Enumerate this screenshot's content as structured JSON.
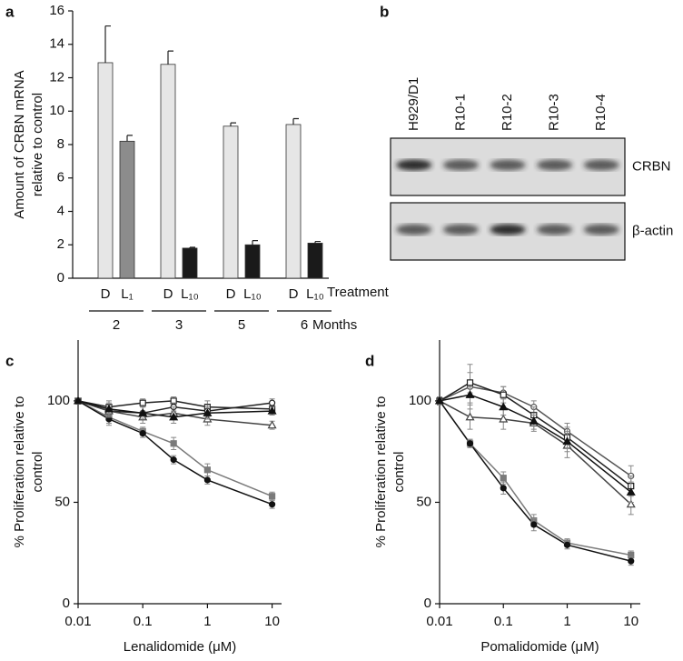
{
  "chart_data": [
    {
      "type": "bar",
      "panel_label": "a",
      "ylabel": [
        "Amount of CRBN mRNA",
        "relative to control"
      ],
      "categories": [
        "D",
        "L₁",
        "D",
        "L₁₀",
        "D",
        "L₁₀",
        "D",
        "L₁₀"
      ],
      "values": [
        12.9,
        8.2,
        12.8,
        1.8,
        9.1,
        2.0,
        9.2,
        2.1
      ],
      "errors": [
        2.2,
        0.35,
        0.8,
        0.05,
        0.2,
        0.25,
        0.35,
        0.1
      ],
      "colors": [
        "#e6e6e6",
        "#8c8c8c",
        "#e6e6e6",
        "#1a1a1a",
        "#e6e6e6",
        "#1a1a1a",
        "#e6e6e6",
        "#1a1a1a"
      ],
      "category_axis_label": "Treatment",
      "groups": [
        "2",
        "3",
        "5",
        "6"
      ],
      "group_axis_label": "Months",
      "ylim": [
        0,
        16
      ],
      "yticks": [
        0,
        2,
        4,
        6,
        8,
        10,
        12,
        14,
        16
      ]
    },
    {
      "type": "blot",
      "panel_label": "b",
      "lanes": [
        "H929/D1",
        "R10-1",
        "R10-2",
        "R10-3",
        "R10-4"
      ],
      "rows": [
        "CRBN",
        "β-actin"
      ]
    },
    {
      "type": "line",
      "panel_label": "c",
      "xlabel": "Lenalidomide (μM)",
      "ylabel": [
        "% Proliferation relative to",
        "control"
      ],
      "x": [
        0.01,
        0.03,
        0.1,
        0.3,
        1,
        10
      ],
      "xscale": "log",
      "xlim": [
        0.01,
        14
      ],
      "xticks": [
        0.01,
        0.1,
        1,
        10
      ],
      "ylim": [
        0,
        130
      ],
      "yticks": [
        0,
        50,
        100
      ],
      "series": [
        {
          "color": "#7a7a7a",
          "marker": "square",
          "fill": "filled",
          "values": [
            100,
            92,
            85,
            79,
            66,
            53
          ],
          "errors": [
            1.5,
            3,
            2,
            3,
            3,
            2
          ]
        },
        {
          "color": "#111111",
          "marker": "circle",
          "fill": "filled",
          "values": [
            100,
            91,
            84,
            71,
            61,
            49
          ],
          "errors": [
            1.5,
            3,
            2,
            2,
            2,
            2
          ]
        },
        {
          "color": "#222222",
          "marker": "square",
          "fill": "open",
          "values": [
            100,
            97,
            99,
            100,
            97,
            96
          ],
          "errors": [
            1.5,
            3,
            2,
            2,
            3,
            2
          ]
        },
        {
          "color": "#222222",
          "marker": "circle",
          "fill": "open",
          "values": [
            100,
            95,
            94,
            97,
            95,
            99
          ],
          "errors": [
            1.5,
            3,
            3,
            2,
            3,
            2
          ]
        },
        {
          "color": "#444444",
          "marker": "triangle",
          "fill": "open",
          "values": [
            100,
            95,
            92,
            94,
            91,
            88
          ],
          "errors": [
            1.5,
            3,
            3,
            3,
            3,
            2
          ]
        },
        {
          "color": "#111111",
          "marker": "triangle",
          "fill": "filled",
          "values": [
            100,
            96,
            94,
            92,
            94,
            95
          ],
          "errors": [
            1.5,
            3,
            3,
            3,
            3,
            2
          ]
        }
      ]
    },
    {
      "type": "line",
      "panel_label": "d",
      "xlabel": "Pomalidomide (μM)",
      "ylabel": [
        "% Proliferation relative to",
        "control"
      ],
      "x": [
        0.01,
        0.03,
        0.1,
        0.3,
        1,
        10
      ],
      "xscale": "log",
      "xlim": [
        0.01,
        14
      ],
      "xticks": [
        0.01,
        0.1,
        1,
        10
      ],
      "ylim": [
        0,
        130
      ],
      "yticks": [
        0,
        50,
        100
      ],
      "series": [
        {
          "color": "#7a7a7a",
          "marker": "square",
          "fill": "filled",
          "values": [
            100,
            79,
            62,
            41,
            30,
            24
          ],
          "errors": [
            1.5,
            2,
            3,
            3,
            2,
            2
          ]
        },
        {
          "color": "#111111",
          "marker": "circle",
          "fill": "filled",
          "values": [
            100,
            79,
            57,
            39,
            29,
            21
          ],
          "errors": [
            1.5,
            2,
            3,
            3,
            2,
            2
          ]
        },
        {
          "color": "#555555",
          "marker": "circle",
          "fill": "open",
          "values": [
            100,
            107,
            104,
            97,
            85,
            63
          ],
          "errors": [
            2,
            11,
            3,
            3,
            4,
            5
          ]
        },
        {
          "color": "#222222",
          "marker": "square",
          "fill": "open",
          "values": [
            100,
            109,
            103,
            93,
            82,
            58
          ],
          "errors": [
            2,
            5,
            4,
            4,
            5,
            5
          ]
        },
        {
          "color": "#444444",
          "marker": "triangle",
          "fill": "open",
          "values": [
            100,
            92,
            91,
            89,
            78,
            49
          ],
          "errors": [
            2,
            6,
            5,
            4,
            6,
            5
          ]
        },
        {
          "color": "#111111",
          "marker": "triangle",
          "fill": "filled",
          "values": [
            100,
            103,
            97,
            90,
            80,
            55
          ],
          "errors": [
            2,
            4,
            4,
            4,
            5,
            5
          ]
        }
      ]
    }
  ]
}
